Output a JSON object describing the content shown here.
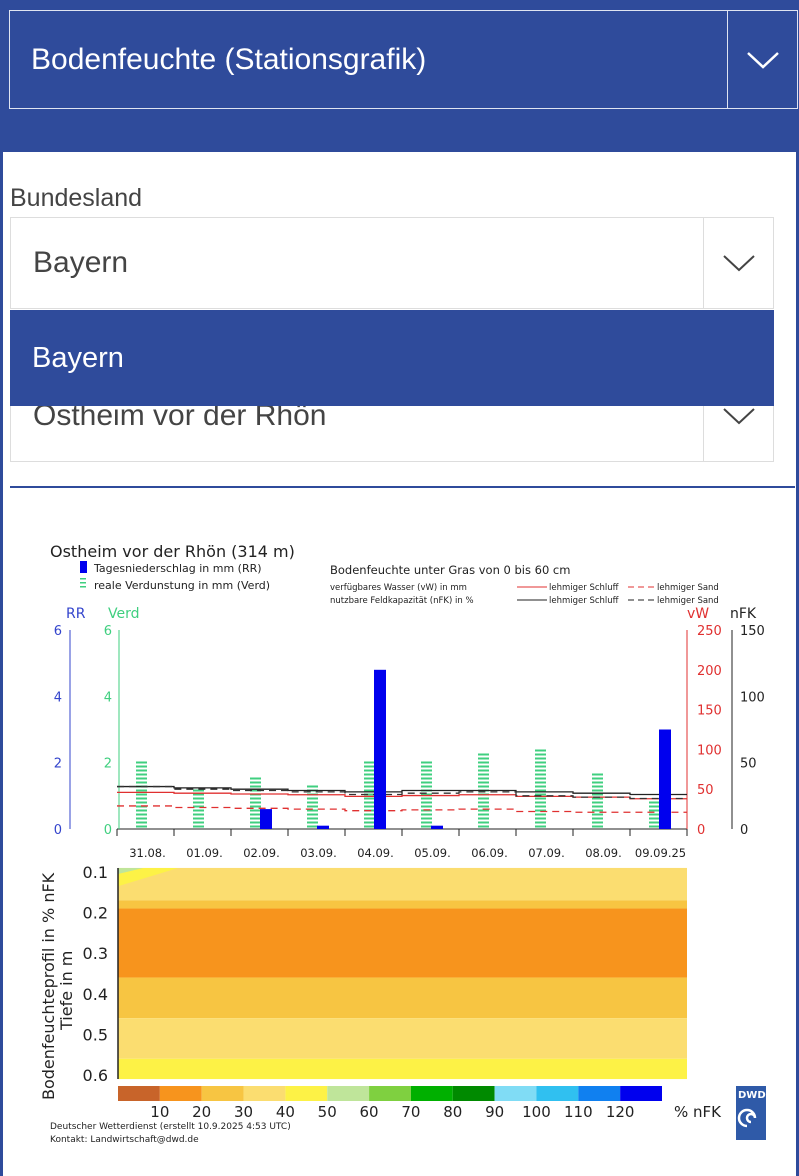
{
  "product_select": {
    "value": "Bodenfeuchte (Stationsgrafik)",
    "icon": "chevron-down-icon"
  },
  "state_field": {
    "label": "Bundesland",
    "value": "Bayern",
    "icon": "chevron-down-icon"
  },
  "state_dropdown": {
    "options": [
      "Bayern"
    ],
    "highlighted": "Bayern"
  },
  "station_select": {
    "value": "Ostheim vor der Rhön",
    "icon": "chevron-down-icon"
  },
  "colors": {
    "brand": "#2f4b9b",
    "rr": "#0000ee",
    "verd": "#3fcf7f",
    "vw": "#e03030",
    "nfk": "#222222"
  },
  "chart_data": [
    {
      "type": "bar+line",
      "title": "Ostheim vor der Rhön (314 m)",
      "legend": {
        "rr": "Tagesniederschlag in mm (RR)",
        "verd": "reale Verdunstung in mm (Verd)",
        "heading": "Bodenfeuchte unter Gras von 0 bis 60 cm",
        "vw_label": "verfügbares Wasser (vW) in mm",
        "nfk_label": "nutzbare Feldkapazität (nFK) in %",
        "schluff": "lehmiger Schluff",
        "sand": "lehmiger Sand"
      },
      "axes": {
        "rr_label": "RR",
        "verd_label": "Verd",
        "vw_label": "vW",
        "nfk_label": "nFK",
        "rr_ticks": [
          0,
          2,
          4,
          6
        ],
        "verd_ticks": [
          0,
          2,
          4,
          6
        ],
        "vw_ticks": [
          0,
          50,
          100,
          150,
          200,
          250
        ],
        "nfk_ticks": [
          0,
          50,
          100,
          150
        ],
        "rr_ylim": [
          0,
          6
        ],
        "vw_ylim": [
          0,
          250
        ],
        "nfk_ylim": [
          0,
          150
        ]
      },
      "categories": [
        "31.08.",
        "01.09.",
        "02.09.",
        "03.09.",
        "04.09.",
        "05.09.",
        "06.09.",
        "07.09.",
        "08.09.",
        "09.09.25"
      ],
      "series": [
        {
          "name": "Tagesniederschlag in mm (RR)",
          "axis": "rr",
          "values": [
            0,
            0,
            0.6,
            0.1,
            4.8,
            0.1,
            0,
            0,
            0,
            3.0
          ]
        },
        {
          "name": "reale Verdunstung in mm (Verd)",
          "axis": "rr",
          "values": [
            2.0,
            1.2,
            1.55,
            1.3,
            2.0,
            2.0,
            2.3,
            2.4,
            1.65,
            0.9
          ]
        },
        {
          "name": "vW lehmiger Schluff",
          "axis": "vw",
          "values": [
            46,
            45,
            44,
            43,
            41,
            42,
            43,
            41,
            40,
            38
          ]
        },
        {
          "name": "vW lehmiger Sand",
          "axis": "vw",
          "values": [
            29,
            27,
            26,
            25,
            23,
            24,
            25,
            22,
            21,
            21
          ]
        },
        {
          "name": "nFK lehmiger Schluff",
          "axis": "nfk",
          "values": [
            32,
            31,
            30,
            29,
            28,
            29,
            29,
            28,
            27,
            26
          ]
        },
        {
          "name": "nFK lehmiger Sand",
          "axis": "nfk",
          "values": [
            32,
            30,
            29,
            28,
            26,
            27,
            28,
            25,
            24,
            23
          ]
        }
      ]
    },
    {
      "type": "heatmap",
      "ylabel": "Bodenfeuchteprofil in % nFK",
      "ylabel2": "Tiefe in m",
      "yticks": [
        "0.1",
        "0.2",
        "0.3",
        "0.4",
        "0.5",
        "0.6"
      ],
      "bands": [
        {
          "from": 0.09,
          "to": 0.17,
          "class": "30-40"
        },
        {
          "from": 0.17,
          "to": 0.19,
          "class": "20-30"
        },
        {
          "from": 0.19,
          "to": 0.36,
          "class": "10-20"
        },
        {
          "from": 0.36,
          "to": 0.46,
          "class": "20-30"
        },
        {
          "from": 0.46,
          "to": 0.56,
          "class": "30-40"
        },
        {
          "from": 0.56,
          "to": 0.61,
          "class": "40-50"
        }
      ],
      "scale_colors": [
        "#c8642a",
        "#f7941d",
        "#f7c542",
        "#fbdd70",
        "#fdf246",
        "#bfe59a",
        "#7fd040",
        "#00b000",
        "#008a00",
        "#80dcf5",
        "#30c0f0",
        "#1080f0",
        "#0000ee"
      ],
      "scale_labels": [
        "10",
        "20",
        "30",
        "40",
        "50",
        "60",
        "70",
        "80",
        "90",
        "100",
        "110",
        "120"
      ],
      "scale_unit": "% nFK"
    }
  ],
  "footer": {
    "line1": "Deutscher Wetterdienst (erstellt 10.9.2025 4:53 UTC)",
    "line2": "Kontakt: Landwirtschaft@dwd.de",
    "logo": "DWD"
  }
}
